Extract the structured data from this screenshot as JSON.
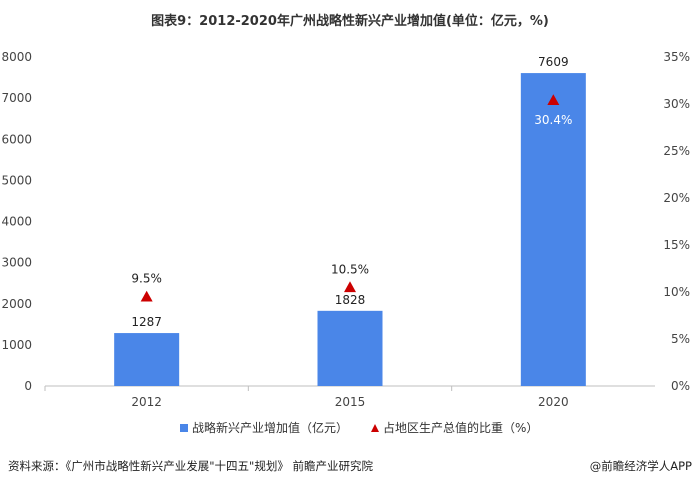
{
  "title": "图表9：2012-2020年广州战略性新兴产业增加值(单位：亿元，%)",
  "source_text": "资料来源：《广州市战略性新兴产业发展\"十四五\"规划》 前瞻产业研究院",
  "brand_text": "@前瞻经济学人APP",
  "colors": {
    "bar": "#4a86e8",
    "marker": "#cc0000",
    "axis": "#bfbfbf"
  },
  "chart_data": {
    "type": "bar",
    "categories": [
      "2012",
      "2015",
      "2020"
    ],
    "series": [
      {
        "name": "战略新兴产业增加值（亿元）",
        "axis": "left",
        "type": "bar",
        "values": [
          1287,
          1828,
          7609
        ],
        "labels": [
          "1287",
          "1828",
          "7609"
        ]
      },
      {
        "name": "占地区生产总值的比重（%）",
        "axis": "right",
        "type": "marker",
        "values": [
          9.5,
          10.5,
          30.4
        ],
        "labels": [
          "9.5%",
          "10.5%",
          "30.4%"
        ]
      }
    ],
    "left_axis": {
      "ylim": [
        0,
        8000
      ],
      "ticks": [
        "0",
        "1000",
        "2000",
        "3000",
        "4000",
        "5000",
        "6000",
        "7000",
        "8000"
      ]
    },
    "right_axis": {
      "ylim": [
        0,
        35
      ],
      "ticks": [
        "0%",
        "5%",
        "10%",
        "15%",
        "20%",
        "25%",
        "30%",
        "35%"
      ]
    },
    "grid": false,
    "legend_position": "bottom"
  }
}
